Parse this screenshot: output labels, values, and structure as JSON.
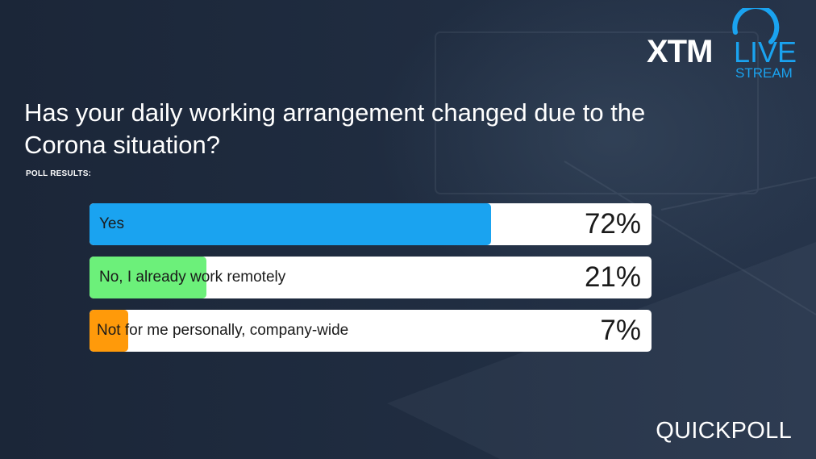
{
  "brand": {
    "logo_primary": "XTM",
    "logo_secondary": "LIVE",
    "logo_tertiary": "STREAM",
    "accent_color": "#1aa3f0"
  },
  "question": "Has your daily working arrangement changed due to the Corona situation?",
  "results_label": "POLL RESULTS:",
  "options": [
    {
      "label": "Yes",
      "percent_text": "72%",
      "share": 0.72,
      "color": "#1aa3f0"
    },
    {
      "label": "No, I already work remotely",
      "percent_text": "21%",
      "share": 0.21,
      "color": "#6cf07a"
    },
    {
      "label": "Not for me personally, company-wide",
      "percent_text": "7%",
      "share": 0.07,
      "color": "#ff9a0a"
    }
  ],
  "footer": "QUICKPOLL",
  "colors": {
    "background": "#1e2a3d",
    "bar_track": "#ffffff",
    "text_on_bar": "#1a1a1a"
  }
}
